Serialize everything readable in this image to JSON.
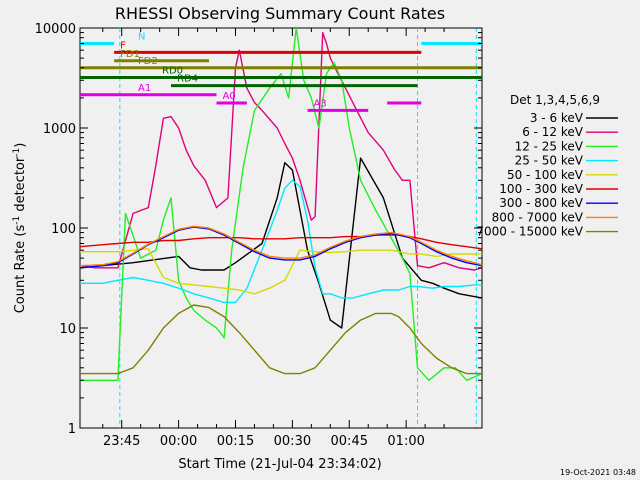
{
  "chart_data": {
    "type": "line",
    "title": "RHESSI Observing Summary Count Rates",
    "xlabel": "Start Time (21-Jul-04 23:34:02)",
    "ylabel_main": "Count Rate (s",
    "ylabel_sup1": "-1",
    "ylabel_mid": " detector",
    "ylabel_sup2": "-1",
    "ylabel_end": ")",
    "yscale": "log",
    "xlim_minutes_after_2330": [
      4.0,
      110.0
    ],
    "ylim": [
      1,
      10000
    ],
    "x_ticks": [
      {
        "label": "23:45",
        "minute": 15
      },
      {
        "label": "00:00",
        "minute": 30
      },
      {
        "label": "00:15",
        "minute": 45
      },
      {
        "label": "00:30",
        "minute": 60
      },
      {
        "label": "00:45",
        "minute": 75
      },
      {
        "label": "01:00",
        "minute": 90
      }
    ],
    "y_ticks": [
      {
        "label": "1",
        "value": 1
      },
      {
        "label": "10",
        "value": 10
      },
      {
        "label": "100",
        "value": 100
      },
      {
        "label": "1000",
        "value": 1000
      },
      {
        "label": "10000",
        "value": 10000
      }
    ],
    "legend_title": "Det 1,3,4,5,6,9",
    "legend_position": "right",
    "series": [
      {
        "name": "3 - 6 keV",
        "color": "#000000",
        "points": [
          [
            4,
            40
          ],
          [
            18,
            45
          ],
          [
            30,
            52
          ],
          [
            33,
            40
          ],
          [
            36,
            38
          ],
          [
            42,
            38
          ],
          [
            45,
            45
          ],
          [
            52,
            70
          ],
          [
            56,
            200
          ],
          [
            58,
            450
          ],
          [
            60,
            380
          ],
          [
            62,
            150
          ],
          [
            64,
            60
          ],
          [
            67,
            28
          ],
          [
            70,
            12
          ],
          [
            73,
            10
          ],
          [
            78,
            500
          ],
          [
            84,
            200
          ],
          [
            89,
            50
          ],
          [
            94,
            30
          ],
          [
            97,
            28
          ],
          [
            100,
            25
          ],
          [
            104,
            22
          ],
          [
            110,
            20
          ]
        ]
      },
      {
        "name": "6 - 12 keV",
        "color": "#e0007a",
        "points": [
          [
            4,
            42
          ],
          [
            8,
            40
          ],
          [
            14,
            40
          ],
          [
            18,
            140
          ],
          [
            22,
            160
          ],
          [
            24,
            420
          ],
          [
            26,
            1250
          ],
          [
            28,
            1300
          ],
          [
            30,
            1000
          ],
          [
            32,
            600
          ],
          [
            34,
            420
          ],
          [
            37,
            300
          ],
          [
            40,
            160
          ],
          [
            43,
            200
          ],
          [
            45,
            4000
          ],
          [
            46,
            6000
          ],
          [
            48,
            2500
          ],
          [
            50,
            1800
          ],
          [
            52,
            1500
          ],
          [
            56,
            1000
          ],
          [
            58,
            700
          ],
          [
            60,
            500
          ],
          [
            62,
            300
          ],
          [
            65,
            120
          ],
          [
            66,
            130
          ],
          [
            68,
            9000
          ],
          [
            69,
            7000
          ],
          [
            70,
            5000
          ],
          [
            72,
            3500
          ],
          [
            74,
            2500
          ],
          [
            77,
            1500
          ],
          [
            80,
            900
          ],
          [
            84,
            600
          ],
          [
            87,
            380
          ],
          [
            89,
            300
          ],
          [
            91,
            300
          ],
          [
            93,
            42
          ],
          [
            96,
            40
          ],
          [
            100,
            45
          ],
          [
            104,
            40
          ],
          [
            108,
            38
          ],
          [
            110,
            40
          ]
        ]
      },
      {
        "name": "12 - 25 keV",
        "color": "#22ee22",
        "points": [
          [
            4,
            3
          ],
          [
            14,
            3
          ],
          [
            16,
            140
          ],
          [
            20,
            50
          ],
          [
            24,
            60
          ],
          [
            26,
            120
          ],
          [
            28,
            200
          ],
          [
            30,
            30
          ],
          [
            32,
            20
          ],
          [
            34,
            15
          ],
          [
            37,
            12
          ],
          [
            40,
            10
          ],
          [
            42,
            8
          ],
          [
            44,
            60
          ],
          [
            47,
            400
          ],
          [
            50,
            1500
          ],
          [
            54,
            2500
          ],
          [
            57,
            3500
          ],
          [
            59,
            2000
          ],
          [
            61,
            10000
          ],
          [
            63,
            3000
          ],
          [
            65,
            2000
          ],
          [
            67,
            1000
          ],
          [
            69,
            3500
          ],
          [
            71,
            4500
          ],
          [
            73,
            3000
          ],
          [
            75,
            1000
          ],
          [
            78,
            300
          ],
          [
            82,
            150
          ],
          [
            86,
            80
          ],
          [
            89,
            50
          ],
          [
            91,
            35
          ],
          [
            93,
            4
          ],
          [
            96,
            3
          ],
          [
            100,
            4
          ],
          [
            103,
            4
          ],
          [
            106,
            3
          ],
          [
            110,
            3.5
          ]
        ]
      },
      {
        "name": "25 - 50 keV",
        "color": "#00e8ff",
        "points": [
          [
            4,
            28
          ],
          [
            10,
            28
          ],
          [
            14,
            30
          ],
          [
            18,
            32
          ],
          [
            22,
            30
          ],
          [
            26,
            28
          ],
          [
            30,
            25
          ],
          [
            34,
            22
          ],
          [
            38,
            20
          ],
          [
            42,
            18
          ],
          [
            45,
            18
          ],
          [
            48,
            25
          ],
          [
            52,
            60
          ],
          [
            56,
            150
          ],
          [
            58,
            250
          ],
          [
            60,
            300
          ],
          [
            62,
            260
          ],
          [
            64,
            120
          ],
          [
            66,
            40
          ],
          [
            68,
            22
          ],
          [
            70,
            22
          ],
          [
            73,
            20
          ],
          [
            76,
            20
          ],
          [
            80,
            22
          ],
          [
            84,
            24
          ],
          [
            88,
            24
          ],
          [
            91,
            26
          ],
          [
            93,
            26
          ],
          [
            97,
            25
          ],
          [
            100,
            26
          ],
          [
            104,
            26
          ],
          [
            108,
            27
          ],
          [
            110,
            27
          ]
        ]
      },
      {
        "name": "50 - 100 keV",
        "color": "#d8d800",
        "points": [
          [
            4,
            58
          ],
          [
            10,
            58
          ],
          [
            14,
            58
          ],
          [
            18,
            60
          ],
          [
            22,
            62
          ],
          [
            26,
            32
          ],
          [
            30,
            28
          ],
          [
            34,
            27
          ],
          [
            38,
            26
          ],
          [
            42,
            25
          ],
          [
            46,
            24
          ],
          [
            50,
            22
          ],
          [
            54,
            25
          ],
          [
            58,
            30
          ],
          [
            62,
            60
          ],
          [
            66,
            58
          ],
          [
            70,
            57
          ],
          [
            74,
            58
          ],
          [
            78,
            60
          ],
          [
            82,
            60
          ],
          [
            86,
            60
          ],
          [
            88,
            58
          ],
          [
            91,
            55
          ],
          [
            94,
            55
          ],
          [
            98,
            52
          ],
          [
            102,
            55
          ],
          [
            106,
            55
          ],
          [
            110,
            55
          ]
        ]
      },
      {
        "name": "100 - 300 keV",
        "color": "#e00000",
        "points": [
          [
            4,
            65
          ],
          [
            10,
            68
          ],
          [
            14,
            70
          ],
          [
            18,
            72
          ],
          [
            22,
            72
          ],
          [
            26,
            75
          ],
          [
            30,
            75
          ],
          [
            34,
            78
          ],
          [
            38,
            80
          ],
          [
            42,
            80
          ],
          [
            46,
            80
          ],
          [
            50,
            78
          ],
          [
            54,
            78
          ],
          [
            58,
            78
          ],
          [
            62,
            80
          ],
          [
            66,
            80
          ],
          [
            70,
            80
          ],
          [
            74,
            82
          ],
          [
            78,
            82
          ],
          [
            82,
            85
          ],
          [
            86,
            85
          ],
          [
            88,
            85
          ],
          [
            91,
            82
          ],
          [
            94,
            78
          ],
          [
            98,
            72
          ],
          [
            102,
            68
          ],
          [
            106,
            65
          ],
          [
            110,
            62
          ]
        ]
      },
      {
        "name": "300 - 800 keV",
        "color": "#0000ff",
        "points": [
          [
            4,
            40
          ],
          [
            10,
            42
          ],
          [
            14,
            45
          ],
          [
            18,
            55
          ],
          [
            22,
            68
          ],
          [
            26,
            80
          ],
          [
            30,
            95
          ],
          [
            34,
            102
          ],
          [
            38,
            98
          ],
          [
            42,
            85
          ],
          [
            46,
            70
          ],
          [
            50,
            58
          ],
          [
            54,
            50
          ],
          [
            58,
            48
          ],
          [
            62,
            48
          ],
          [
            66,
            52
          ],
          [
            70,
            62
          ],
          [
            74,
            72
          ],
          [
            78,
            80
          ],
          [
            82,
            85
          ],
          [
            86,
            88
          ],
          [
            88,
            85
          ],
          [
            91,
            80
          ],
          [
            94,
            70
          ],
          [
            98,
            58
          ],
          [
            102,
            50
          ],
          [
            106,
            45
          ],
          [
            110,
            42
          ]
        ]
      },
      {
        "name": "800 - 7000 keV",
        "color": "#ff8000",
        "points": [
          [
            4,
            42
          ],
          [
            10,
            43
          ],
          [
            14,
            46
          ],
          [
            18,
            56
          ],
          [
            22,
            69
          ],
          [
            26,
            82
          ],
          [
            30,
            97
          ],
          [
            34,
            104
          ],
          [
            38,
            100
          ],
          [
            42,
            87
          ],
          [
            46,
            72
          ],
          [
            50,
            60
          ],
          [
            54,
            52
          ],
          [
            58,
            50
          ],
          [
            62,
            50
          ],
          [
            66,
            54
          ],
          [
            70,
            64
          ],
          [
            74,
            74
          ],
          [
            78,
            82
          ],
          [
            82,
            87
          ],
          [
            86,
            90
          ],
          [
            88,
            87
          ],
          [
            91,
            82
          ],
          [
            94,
            72
          ],
          [
            98,
            60
          ],
          [
            102,
            52
          ],
          [
            106,
            47
          ],
          [
            110,
            43
          ]
        ]
      },
      {
        "name": "7000 - 15000 keV",
        "color": "#808000",
        "points": [
          [
            4,
            3.5
          ],
          [
            10,
            3.5
          ],
          [
            14,
            3.5
          ],
          [
            18,
            4
          ],
          [
            22,
            6
          ],
          [
            26,
            10
          ],
          [
            30,
            14
          ],
          [
            34,
            17
          ],
          [
            38,
            16
          ],
          [
            42,
            13
          ],
          [
            46,
            9
          ],
          [
            50,
            6
          ],
          [
            54,
            4
          ],
          [
            58,
            3.5
          ],
          [
            62,
            3.5
          ],
          [
            66,
            4
          ],
          [
            70,
            6
          ],
          [
            74,
            9
          ],
          [
            78,
            12
          ],
          [
            82,
            14
          ],
          [
            86,
            14
          ],
          [
            88,
            13
          ],
          [
            91,
            10
          ],
          [
            94,
            7
          ],
          [
            98,
            5
          ],
          [
            102,
            4
          ],
          [
            106,
            3.5
          ],
          [
            110,
            3.5
          ]
        ]
      }
    ],
    "flag_bars": [
      {
        "label": "N",
        "color": "#00e8ff",
        "value": 7000,
        "segments": [
          [
            4,
            13
          ],
          [
            94,
            110
          ]
        ]
      },
      {
        "label": "F",
        "color": "#e00000",
        "value": 5700,
        "segments": [
          [
            13,
            94
          ]
        ]
      },
      {
        "label": "FD1",
        "color": "#808000",
        "value": 4700,
        "segments": [
          [
            13,
            38
          ]
        ]
      },
      {
        "label": "FD2",
        "color": "#808000",
        "value": 4000,
        "segments": [
          [
            4,
            110
          ]
        ]
      },
      {
        "label": "RD0",
        "color": "#006400",
        "value": 3200,
        "segments": [
          [
            4,
            110
          ]
        ]
      },
      {
        "label": "RD4",
        "color": "#006400",
        "value": 2650,
        "segments": [
          [
            28,
            93
          ]
        ]
      },
      {
        "label": "A1",
        "color": "#e000e0",
        "value": 2150,
        "segments": [
          [
            4,
            40
          ]
        ]
      },
      {
        "label": "A0",
        "color": "#e000e0",
        "value": 1780,
        "segments": [
          [
            40,
            48
          ],
          [
            85,
            94
          ]
        ]
      },
      {
        "label": "A3",
        "color": "#e000e0",
        "value": 1500,
        "segments": [
          [
            64,
            80
          ]
        ]
      }
    ],
    "attenuator_lines_minutes": [
      14.5,
      93.0,
      108.5
    ],
    "footer_date": "19-Oct-2021 03:48"
  }
}
